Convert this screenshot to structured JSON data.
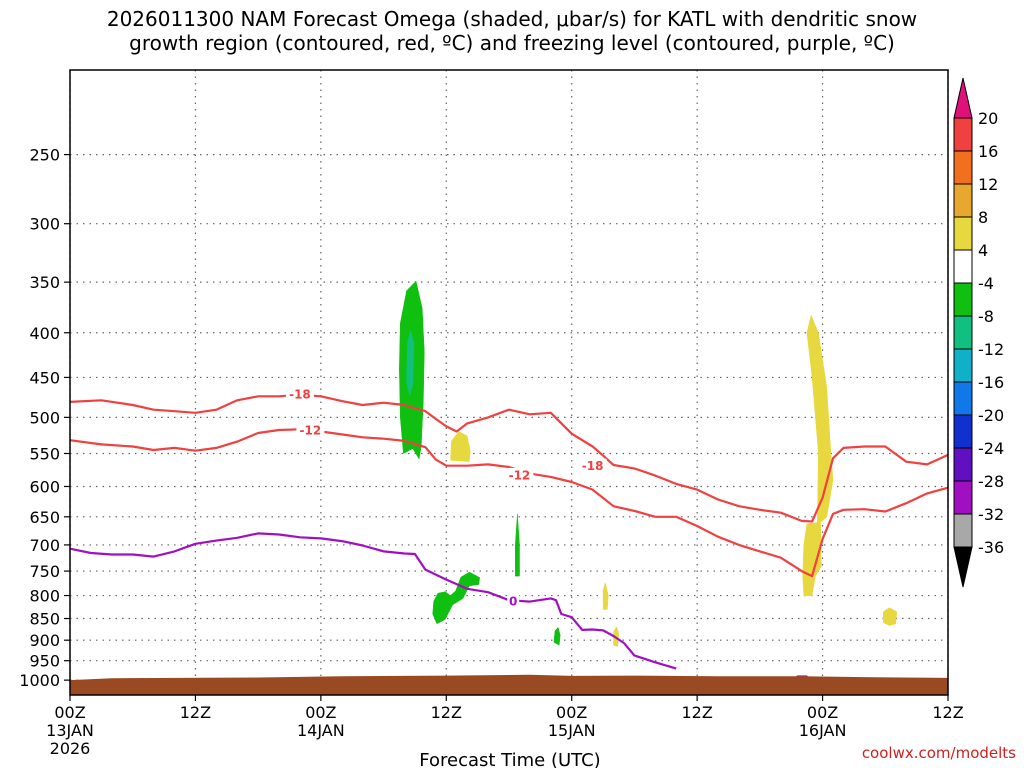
{
  "chart_data": {
    "type": "heatmap",
    "title_lines": [
      "2026011300 NAM Forecast Omega (shaded, μbar/s) for KATL with dendritic snow",
      "growth region (contoured, red, ºC) and freezing level (contoured, purple, ºC)"
    ],
    "xlabel": "Forecast Time (UTC)",
    "ylabel": "",
    "credit": "coolwx.com/modelts",
    "x_unit": "forecast hour",
    "xlim": [
      0,
      84
    ],
    "ylim": [
      1040,
      200
    ],
    "y_log": true,
    "y_ticks": [
      250,
      300,
      350,
      400,
      450,
      500,
      550,
      600,
      650,
      700,
      750,
      800,
      850,
      900,
      950,
      1000
    ],
    "y_tick_labels": [
      "250",
      "300",
      "350",
      "400",
      "450",
      "500",
      "550",
      "600",
      "650",
      "700",
      "750",
      "800",
      "850",
      "900",
      "950",
      "1000"
    ],
    "x_ticks": [
      {
        "hour": 0,
        "lines": [
          "00Z",
          "13JAN",
          "2026"
        ]
      },
      {
        "hour": 12,
        "lines": [
          "12Z"
        ]
      },
      {
        "hour": 24,
        "lines": [
          "00Z",
          "14JAN"
        ]
      },
      {
        "hour": 36,
        "lines": [
          "12Z"
        ]
      },
      {
        "hour": 48,
        "lines": [
          "00Z",
          "15JAN"
        ]
      },
      {
        "hour": 60,
        "lines": [
          "12Z"
        ]
      },
      {
        "hour": 72,
        "lines": [
          "00Z",
          "16JAN"
        ]
      },
      {
        "hour": 84,
        "lines": [
          "12Z"
        ]
      }
    ],
    "colorbar": {
      "labels": [
        "20",
        "16",
        "12",
        "8",
        "4",
        "-4",
        "-8",
        "-12",
        "-16",
        "-20",
        "-24",
        "-28",
        "-32",
        "-36"
      ],
      "colors": [
        "#e0107a",
        "#f04040",
        "#f07020",
        "#e8a830",
        "#e8d840",
        "#ffffff",
        "#10c010",
        "#10c080",
        "#10b0c8",
        "#1078e8",
        "#1030d0",
        "#6010c0",
        "#a010c0",
        "#a8a8a8",
        "#000000"
      ]
    },
    "terrain": {
      "color": "#9a4a22",
      "points": [
        [
          0,
          1000
        ],
        [
          4,
          995
        ],
        [
          18,
          993
        ],
        [
          26,
          990
        ],
        [
          36,
          988
        ],
        [
          44,
          986
        ],
        [
          48,
          989
        ],
        [
          54,
          988
        ],
        [
          62,
          990
        ],
        [
          70,
          990
        ],
        [
          76,
          992
        ],
        [
          84,
          994
        ]
      ]
    },
    "contours": [
      {
        "name": "-18",
        "color": "#f04040",
        "label": "-18",
        "points": [
          [
            0,
            480
          ],
          [
            3,
            478
          ],
          [
            6,
            484
          ],
          [
            8,
            490
          ],
          [
            10,
            492
          ],
          [
            12,
            494
          ],
          [
            14,
            490
          ],
          [
            16,
            478
          ],
          [
            18,
            473
          ],
          [
            20,
            473
          ],
          [
            22,
            471
          ],
          [
            24,
            473
          ],
          [
            26,
            479
          ],
          [
            28,
            484
          ],
          [
            30,
            481
          ],
          [
            32,
            484
          ],
          [
            34,
            492
          ],
          [
            35,
            502
          ],
          [
            36,
            512
          ],
          [
            37,
            519
          ],
          [
            38,
            508
          ],
          [
            40,
            500
          ],
          [
            42,
            490
          ],
          [
            44,
            496
          ],
          [
            46,
            494
          ],
          [
            48,
            522
          ],
          [
            50,
            540
          ],
          [
            51,
            553
          ],
          [
            52,
            567
          ],
          [
            54,
            572
          ],
          [
            56,
            583
          ],
          [
            58,
            596
          ],
          [
            60,
            605
          ],
          [
            62,
            621
          ],
          [
            64,
            632
          ],
          [
            66,
            638
          ],
          [
            68,
            643
          ],
          [
            70,
            657
          ],
          [
            71,
            658
          ],
          [
            72,
            618
          ],
          [
            73,
            557
          ],
          [
            74,
            542
          ],
          [
            76,
            540
          ],
          [
            78,
            540
          ],
          [
            80,
            562
          ],
          [
            82,
            566
          ],
          [
            84,
            552
          ]
        ],
        "label_points": [
          [
            22,
            470
          ],
          [
            50,
            568
          ]
        ]
      },
      {
        "name": "-12",
        "color": "#f04040",
        "label": "-12",
        "points": [
          [
            0,
            531
          ],
          [
            3,
            537
          ],
          [
            6,
            540
          ],
          [
            8,
            545
          ],
          [
            10,
            542
          ],
          [
            12,
            546
          ],
          [
            14,
            542
          ],
          [
            16,
            533
          ],
          [
            18,
            521
          ],
          [
            20,
            517
          ],
          [
            22,
            516
          ],
          [
            24,
            519
          ],
          [
            26,
            523
          ],
          [
            28,
            527
          ],
          [
            30,
            529
          ],
          [
            32,
            532
          ],
          [
            34,
            541
          ],
          [
            35,
            559
          ],
          [
            36,
            568
          ],
          [
            38,
            568
          ],
          [
            40,
            566
          ],
          [
            42,
            570
          ],
          [
            44,
            580
          ],
          [
            46,
            585
          ],
          [
            48,
            593
          ],
          [
            50,
            605
          ],
          [
            52,
            632
          ],
          [
            54,
            640
          ],
          [
            56,
            650
          ],
          [
            58,
            650
          ],
          [
            60,
            666
          ],
          [
            62,
            685
          ],
          [
            64,
            700
          ],
          [
            66,
            712
          ],
          [
            68,
            724
          ],
          [
            70,
            750
          ],
          [
            71,
            760
          ],
          [
            72,
            689
          ],
          [
            73,
            645
          ],
          [
            74,
            638
          ],
          [
            76,
            637
          ],
          [
            78,
            641
          ],
          [
            80,
            627
          ],
          [
            82,
            611
          ],
          [
            84,
            602
          ]
        ],
        "label_points": [
          [
            23,
            517
          ],
          [
            43,
            582
          ]
        ]
      },
      {
        "name": "0",
        "color": "#a010c0",
        "label": "0",
        "points": [
          [
            0,
            707
          ],
          [
            2,
            715
          ],
          [
            4,
            718
          ],
          [
            6,
            718
          ],
          [
            8,
            722
          ],
          [
            10,
            712
          ],
          [
            12,
            698
          ],
          [
            14,
            692
          ],
          [
            16,
            687
          ],
          [
            18,
            679
          ],
          [
            20,
            681
          ],
          [
            22,
            686
          ],
          [
            24,
            688
          ],
          [
            26,
            693
          ],
          [
            28,
            701
          ],
          [
            30,
            712
          ],
          [
            32,
            716
          ],
          [
            33,
            717
          ],
          [
            34,
            747
          ],
          [
            36,
            767
          ],
          [
            38,
            786
          ],
          [
            40,
            793
          ],
          [
            42,
            810
          ],
          [
            44,
            813
          ],
          [
            46,
            806
          ],
          [
            46.5,
            810
          ],
          [
            47,
            840
          ],
          [
            48,
            847
          ],
          [
            49,
            876
          ],
          [
            50,
            875
          ],
          [
            51,
            877
          ],
          [
            52,
            890
          ],
          [
            53,
            907
          ],
          [
            54,
            937
          ],
          [
            56,
            954
          ],
          [
            58,
            970
          ]
        ],
        "label_points": [
          [
            42.4,
            812
          ]
        ]
      }
    ],
    "omega_regions": [
      {
        "name": "green-tower",
        "value": -6,
        "color": "#10c010",
        "points": [
          [
            31.9,
            550
          ],
          [
            31.6,
            500
          ],
          [
            31.5,
            440
          ],
          [
            31.6,
            390
          ],
          [
            32.2,
            358
          ],
          [
            33.1,
            349
          ],
          [
            33.7,
            375
          ],
          [
            33.9,
            420
          ],
          [
            33.8,
            480
          ],
          [
            33.6,
            540
          ],
          [
            33.4,
            558
          ],
          [
            32.8,
            543
          ]
        ]
      },
      {
        "name": "teal-core",
        "value": -10,
        "color": "#10c080",
        "points": [
          [
            32.2,
            455
          ],
          [
            32.3,
            410
          ],
          [
            32.6,
            398
          ],
          [
            32.9,
            412
          ],
          [
            32.8,
            458
          ],
          [
            32.5,
            472
          ]
        ]
      },
      {
        "name": "green-patch-low",
        "value": -6,
        "color": "#10c010",
        "points": [
          [
            34.8,
            812
          ],
          [
            35.2,
            795
          ],
          [
            35.9,
            792
          ],
          [
            36.4,
            800
          ],
          [
            36.9,
            790
          ],
          [
            37.4,
            762
          ],
          [
            38.2,
            752
          ],
          [
            39.2,
            763
          ],
          [
            39.1,
            777
          ],
          [
            38.2,
            780
          ],
          [
            37.6,
            806
          ],
          [
            36.6,
            820
          ],
          [
            35.9,
            852
          ],
          [
            35.1,
            862
          ],
          [
            34.7,
            840
          ]
        ]
      },
      {
        "name": "green-sliver",
        "value": -6,
        "color": "#10c010",
        "points": [
          [
            42.6,
            760
          ],
          [
            42.6,
            700
          ],
          [
            42.8,
            645
          ],
          [
            43.0,
            700
          ],
          [
            43.0,
            760
          ]
        ]
      },
      {
        "name": "green-dot",
        "value": -6,
        "color": "#10c010",
        "points": [
          [
            46.3,
            905
          ],
          [
            46.4,
            878
          ],
          [
            46.7,
            870
          ],
          [
            46.9,
            888
          ],
          [
            46.8,
            912
          ]
        ]
      },
      {
        "name": "yellow-blob-1",
        "value": 5,
        "color": "#e8d840",
        "points": [
          [
            36.4,
            560
          ],
          [
            36.5,
            532
          ],
          [
            37.2,
            519
          ],
          [
            38.0,
            525
          ],
          [
            38.3,
            547
          ],
          [
            38.2,
            562
          ]
        ]
      },
      {
        "name": "yellow-sliver-1",
        "value": 5,
        "color": "#e8d840",
        "points": [
          [
            51.0,
            830
          ],
          [
            51.0,
            790
          ],
          [
            51.2,
            773
          ],
          [
            51.5,
            800
          ],
          [
            51.4,
            830
          ]
        ]
      },
      {
        "name": "yellow-sliver-2",
        "value": 5,
        "color": "#e8d840",
        "points": [
          [
            52.0,
            912
          ],
          [
            52.0,
            880
          ],
          [
            52.3,
            869
          ],
          [
            52.5,
            885
          ],
          [
            52.4,
            915
          ]
        ]
      },
      {
        "name": "yellow-tower",
        "value": 5,
        "color": "#e8d840",
        "points": [
          [
            70.2,
            801
          ],
          [
            70.1,
            760
          ],
          [
            70.2,
            700
          ],
          [
            70.5,
            662
          ],
          [
            71.5,
            660
          ],
          [
            71.6,
            550
          ],
          [
            71.0,
            450
          ],
          [
            70.5,
            400
          ],
          [
            70.9,
            382
          ],
          [
            71.6,
            400
          ],
          [
            72.4,
            462
          ],
          [
            72.8,
            550
          ],
          [
            73.0,
            590
          ],
          [
            72.4,
            650
          ],
          [
            71.8,
            660
          ],
          [
            71.9,
            740
          ],
          [
            71.3,
            760
          ],
          [
            71.0,
            800
          ]
        ]
      },
      {
        "name": "yellow-blob-2",
        "value": 5,
        "color": "#e8d840",
        "points": [
          [
            77.8,
            859
          ],
          [
            77.8,
            835
          ],
          [
            78.4,
            826
          ],
          [
            79.1,
            835
          ],
          [
            79.0,
            862
          ],
          [
            78.4,
            866
          ]
        ]
      },
      {
        "name": "purple-dot",
        "value": -30,
        "color": "#a010c0",
        "points": [
          [
            69.3,
            994
          ],
          [
            69.6,
            988
          ],
          [
            70.5,
            988
          ],
          [
            70.7,
            994
          ]
        ]
      }
    ]
  }
}
